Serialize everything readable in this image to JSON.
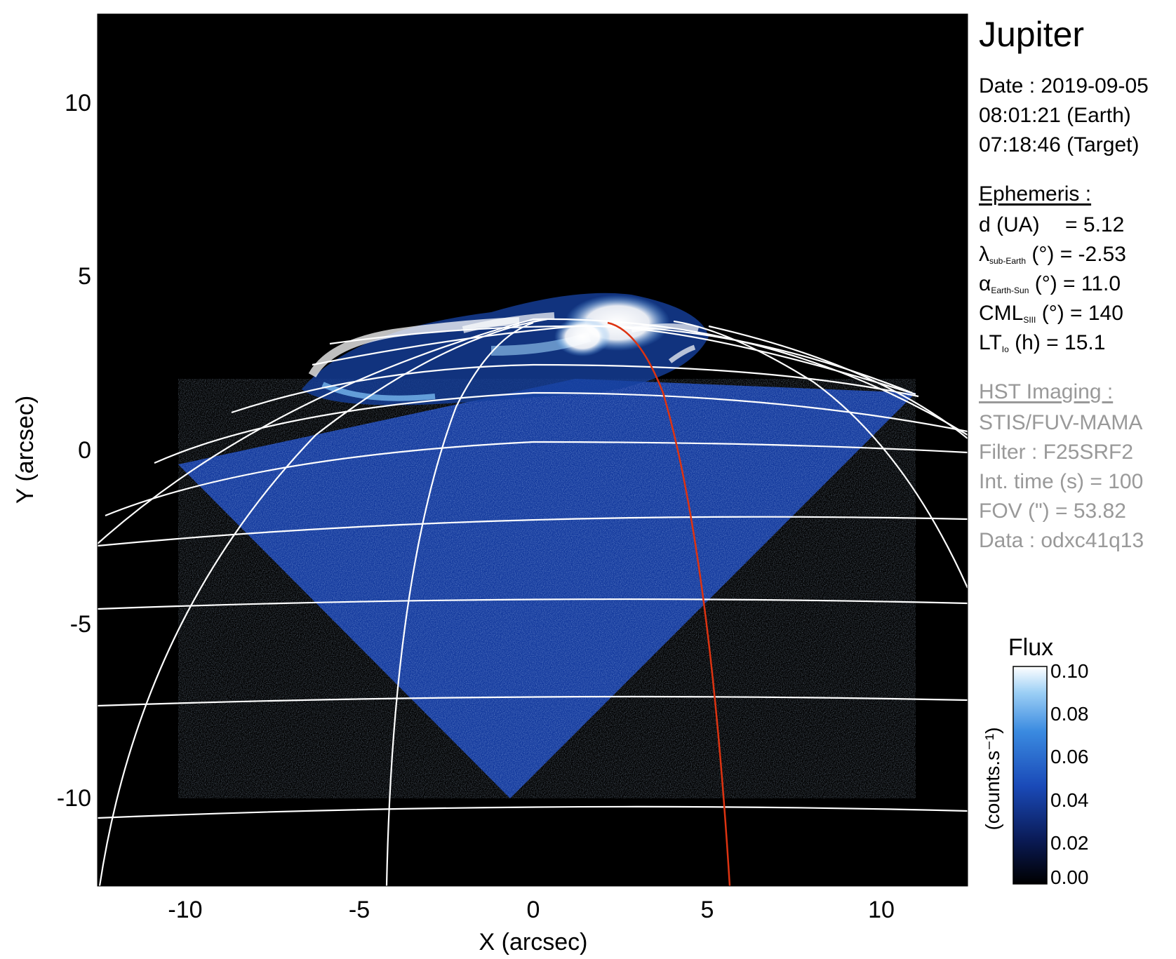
{
  "title": "Jupiter",
  "observation": {
    "date": "Date : 2019-09-05",
    "time_earth": "08:01:21 (Earth)",
    "time_target": "07:18:46 (Target)"
  },
  "ephemeris": {
    "heading": "Ephemeris :",
    "rows": [
      {
        "sym": "d (UA)",
        "sub": "",
        "rest": "= 5.12"
      },
      {
        "sym": "λ",
        "sub": "sub-Earth",
        "rest": "(°) = -2.53"
      },
      {
        "sym": "α",
        "sub": "Earth-Sun",
        "rest": "(°) = 11.0"
      },
      {
        "sym": "CML",
        "sub": "SIII",
        "rest": "(°) = 140"
      },
      {
        "sym": "LT",
        "sub": "Io",
        "rest": "(h) = 15.1"
      }
    ]
  },
  "hst": {
    "heading": "HST Imaging :",
    "instrument": "STIS/FUV-MAMA",
    "filter": "Filter : F25SRF2",
    "int_time": "Int. time (s) = 100",
    "fov": "FOV (\") = 53.82",
    "data": "Data : odxc41q13"
  },
  "axes": {
    "xlabel": "X (arcsec)",
    "ylabel": "Y (arcsec)",
    "xlim": [
      -12.5,
      12.5
    ],
    "ylim": [
      -12.5,
      12.5
    ],
    "xticks": [
      "-10",
      "-5",
      "0",
      "5",
      "10"
    ],
    "yticks": [
      "10",
      "5",
      "0",
      "-5",
      "-10"
    ]
  },
  "colorbar": {
    "title": "Flux",
    "label": "(counts.s⁻¹)",
    "ticks": [
      "0.10",
      "0.08",
      "0.06",
      "0.04",
      "0.02",
      "0.00"
    ],
    "min": 0.0,
    "max": 0.1,
    "colors": [
      "#000000",
      "#0a1a55",
      "#1a4ab8",
      "#3a8ae0",
      "#9ccff5",
      "#ffffff"
    ]
  },
  "colors": {
    "background": "#000000",
    "grid": "#ffffff",
    "sub_observer_meridian": "#dd3311"
  }
}
